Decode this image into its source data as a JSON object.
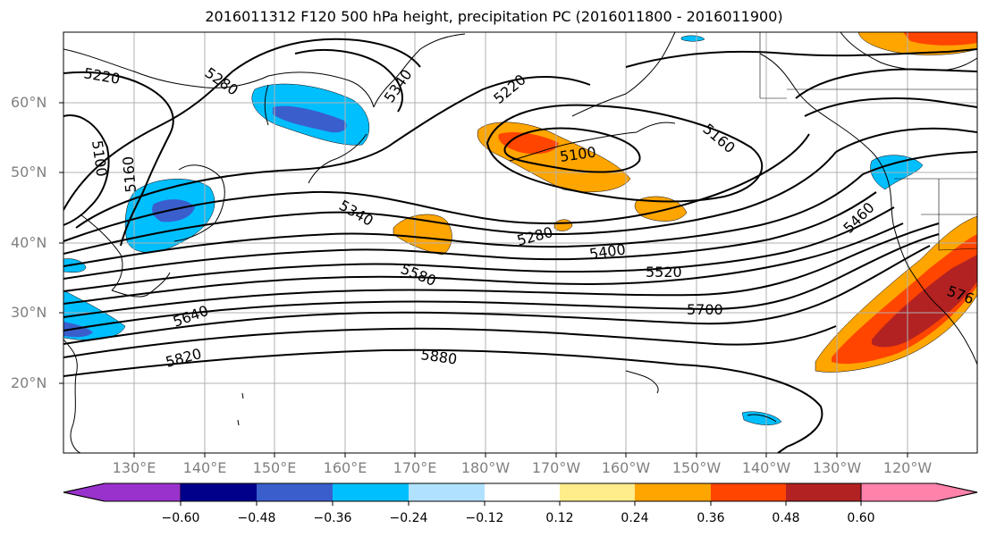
{
  "title": "2016011312 F120 500 hPa height, precipitation PC (2016011800 - 2016011900)",
  "lat_labels": [
    "60°N",
    "50°N",
    "40°N",
    "30°N",
    "20°N"
  ],
  "lon_labels": [
    "130°E",
    "140°E",
    "150°E",
    "160°E",
    "170°E",
    "180°W",
    "170°W",
    "160°W",
    "150°W",
    "140°W",
    "130°W",
    "120°W"
  ],
  "contour_labels": [
    "5220",
    "5280",
    "5340",
    "5220",
    "5160",
    "5100",
    "5100",
    "5160",
    "5340",
    "5280",
    "5400",
    "5520",
    "5460",
    "5580",
    "5640",
    "5700",
    "5820",
    "5880",
    "576"
  ],
  "colorbar": {
    "ticks": [
      "−0.60",
      "−0.48",
      "−0.36",
      "−0.24",
      "−0.12",
      "0.12",
      "0.24",
      "0.36",
      "0.48",
      "0.60"
    ],
    "colors": [
      "#9932cc",
      "#00008b",
      "#3a5fcd",
      "#00bfff",
      "#b0e2ff",
      "#ffffff",
      "#ffec8b",
      "#ffa500",
      "#ff4500",
      "#b22222",
      "#ff82ab"
    ]
  }
}
